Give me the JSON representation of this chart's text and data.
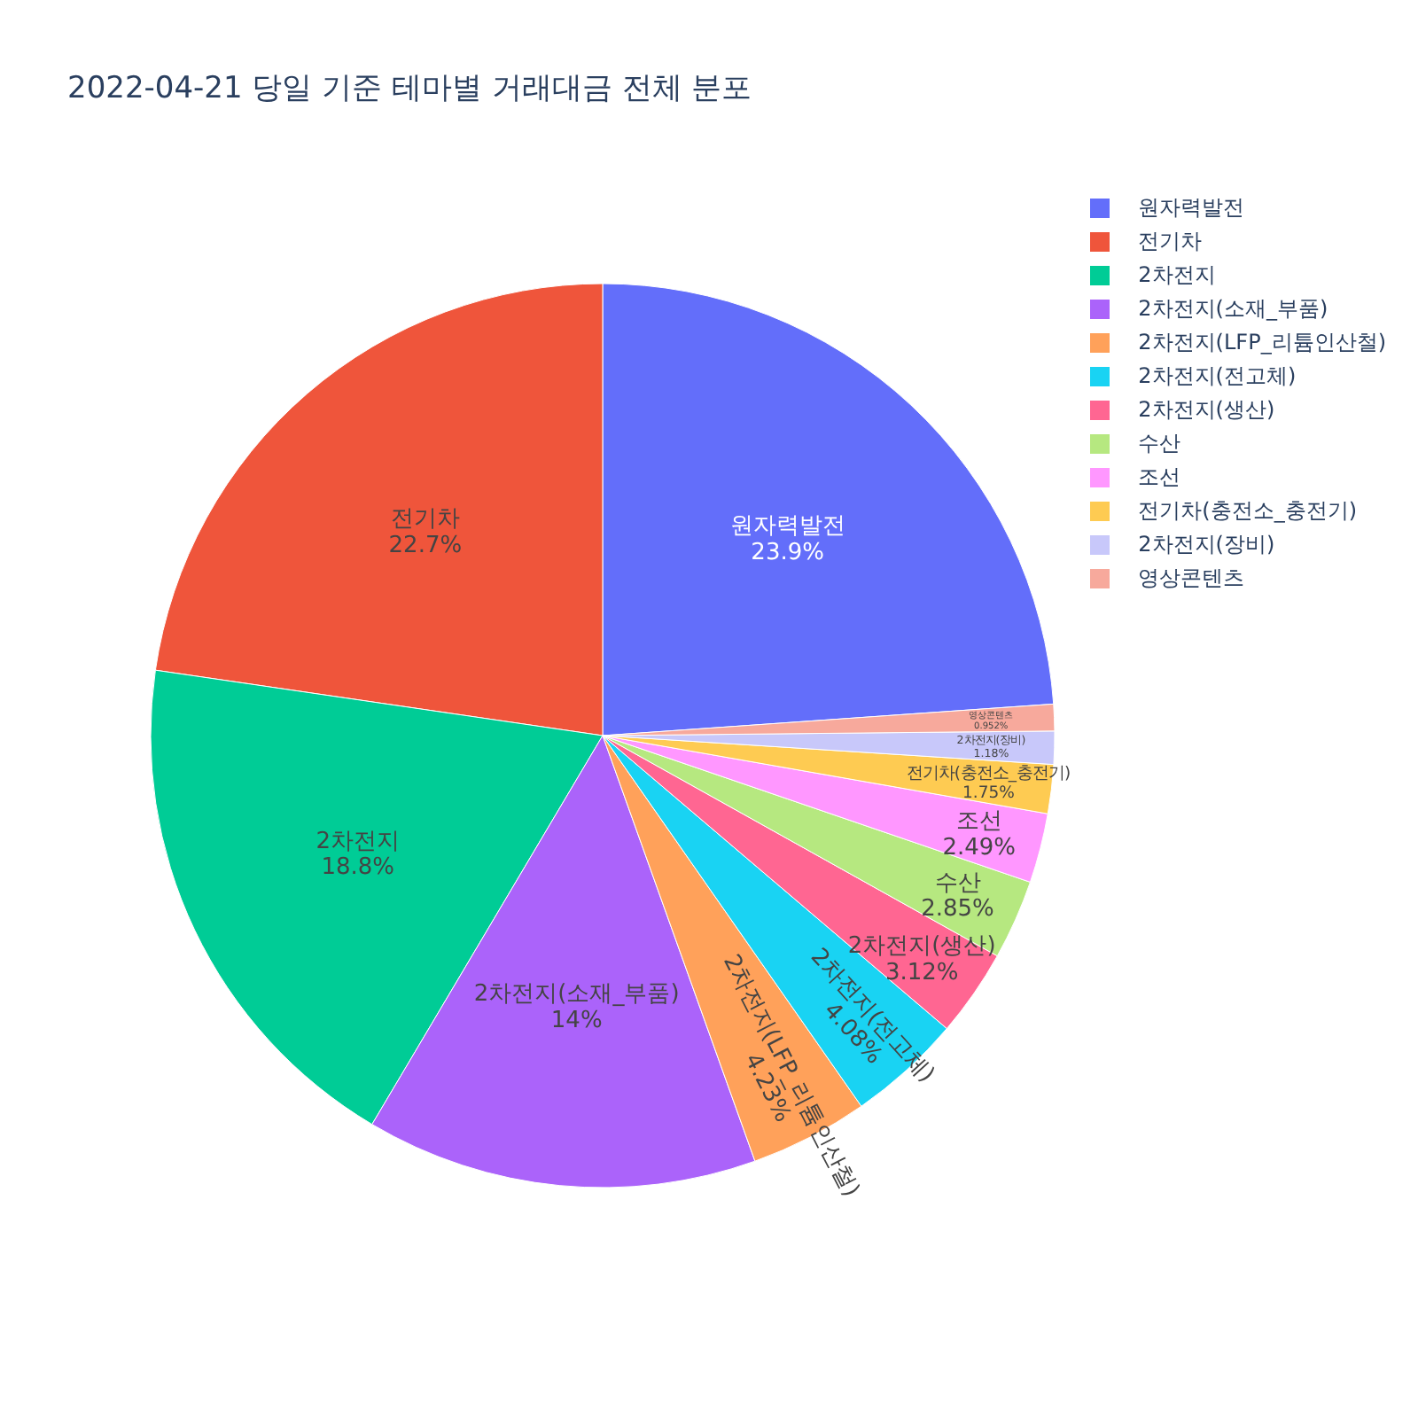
{
  "chart_data": {
    "type": "pie",
    "title": "2022-04-21 당일 기준 테마별 거래대금 전체 분포",
    "categories": [
      "원자력발전",
      "전기차",
      "2차전지",
      "2차전지(소재_부품)",
      "2차전지(LFP_리튬인산철)",
      "2차전지(전고체)",
      "2차전지(생산)",
      "수산",
      "조선",
      "전기차(충전소_충전기)",
      "2차전지(장비)",
      "영상콘텐츠"
    ],
    "values": [
      23.9,
      22.7,
      18.8,
      14,
      4.23,
      4.08,
      3.12,
      2.85,
      2.49,
      1.75,
      1.18,
      0.952
    ],
    "colors": [
      "#636efa",
      "#ef553b",
      "#00cc96",
      "#ab63fa",
      "#ffa15a",
      "#19d3f3",
      "#ff6692",
      "#b6e880",
      "#ff97ff",
      "#fecb52",
      "#c8c8fa",
      "#f7a99c"
    ],
    "value_labels": [
      "23.9%",
      "22.7%",
      "18.8%",
      "14%",
      "4.23%",
      "4.08%",
      "3.12%",
      "2.85%",
      "2.49%",
      "1.75%",
      "1.18%",
      "0.952%"
    ],
    "legend": "top right"
  }
}
